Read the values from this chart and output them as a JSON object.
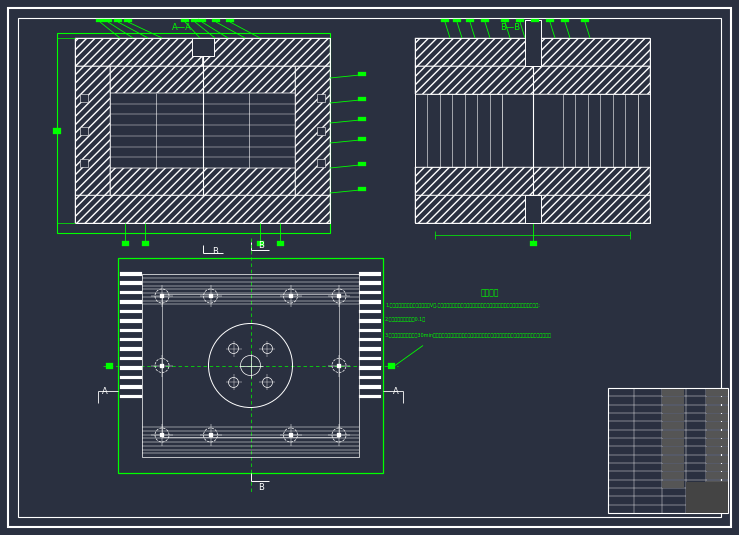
{
  "bg_color": "#2a3040",
  "W": "#ffffff",
  "G": "#00ff00",
  "title": "技术要求",
  "notes": [
    "1.零工各部分配合的精度要求达到Ⅴ级,各零与油封之其基面必须经磨削处理，磨削与滑动面表面粗糙度应符合图纸要求;",
    "2.分箱面间隙不得大于0.1㎜",
    "3.新装配完成后跑合运转30min（转速依实际工况）先空转运转，再半载运转、平载运转，期间须观察有无异常振动和噪音。"
  ],
  "AA_label": "A—A",
  "BB_label": "B—B"
}
